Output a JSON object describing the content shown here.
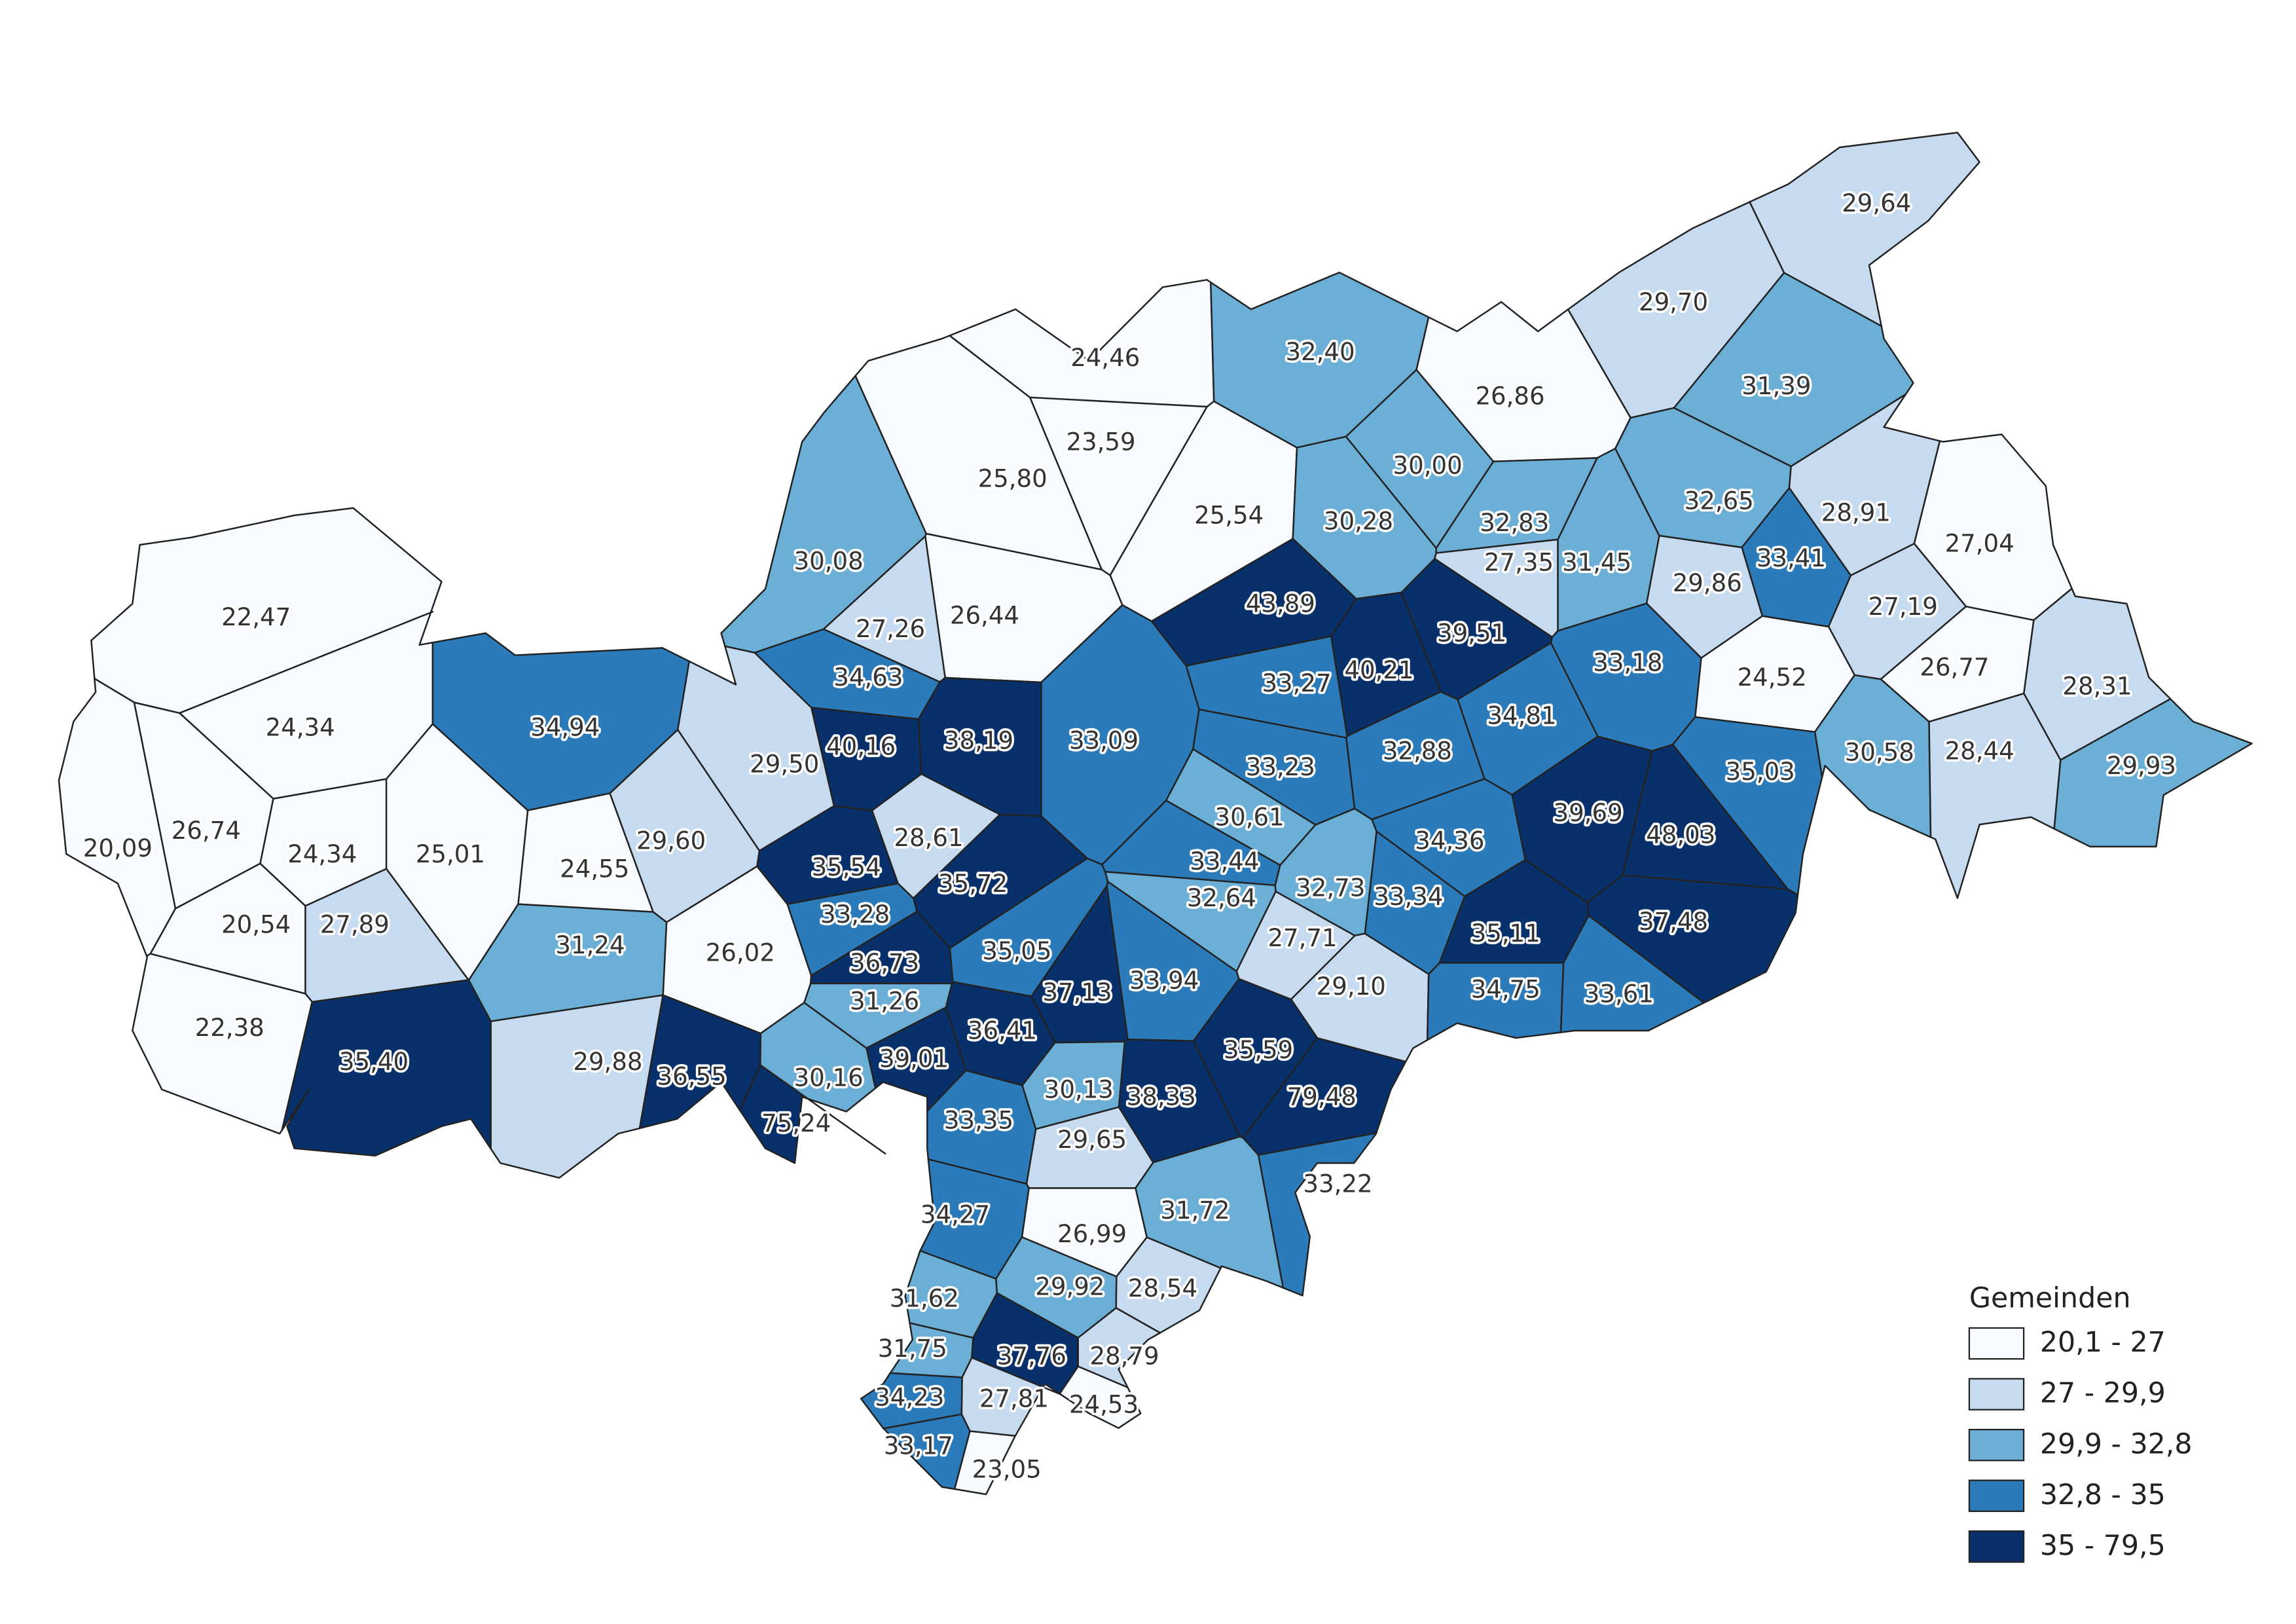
{
  "legend": {
    "title": "Gemeinden",
    "classes": [
      {
        "label": "20,1 - 27",
        "color": "#f7fbff"
      },
      {
        "label": "27 - 29,9",
        "color": "#c6dbef"
      },
      {
        "label": "29,9 - 32,8",
        "color": "#6baed6"
      },
      {
        "label": "32,8 - 35",
        "color": "#2b7bba"
      },
      {
        "label": "35 - 79,5",
        "color": "#08306b"
      }
    ]
  },
  "municipalities": [
    "22,47",
    "24,34",
    "20,09",
    "26,74",
    "24,34",
    "25,01",
    "20,54",
    "27,89",
    "22,38",
    "35,40",
    "34,94",
    "24,55",
    "29,60",
    "31,24",
    "26,02",
    "29,88",
    "36,55",
    "75,24",
    "30,08",
    "27,26",
    "26,44",
    "34,63",
    "29,50",
    "40,16",
    "38,19",
    "28,61",
    "35,54",
    "35,72",
    "33,28",
    "36,73",
    "31,26",
    "35,05",
    "37,13",
    "36,41",
    "39,01",
    "30,16",
    "33,35",
    "30,13",
    "38,33",
    "33,94",
    "24,46",
    "23,59",
    "25,80",
    "25,54",
    "32,40",
    "30,00",
    "30,28",
    "26,86",
    "29,70",
    "29,64",
    "31,39",
    "32,83",
    "27,35",
    "31,45",
    "32,65",
    "28,91",
    "27,04",
    "33,41",
    "29,86",
    "27,19",
    "43,89",
    "39,51",
    "40,21",
    "33,27",
    "33,18",
    "24,52",
    "26,77",
    "28,31",
    "34,81",
    "33,09",
    "33,23",
    "32,88",
    "30,58",
    "28,44",
    "29,93",
    "35,03",
    "39,69",
    "48,03",
    "30,61",
    "34,36",
    "33,44",
    "32,64",
    "32,73",
    "33,34",
    "27,71",
    "35,11",
    "37,48",
    "29,10",
    "34,75",
    "33,61",
    "35,59",
    "79,48",
    "33,22",
    "29,65",
    "31,72",
    "34,27",
    "26,99",
    "29,92",
    "28,54",
    "31,62",
    "31,75",
    "37,76",
    "28,79",
    "34,23",
    "27,81",
    "24,53",
    "33,17",
    "23,05"
  ]
}
